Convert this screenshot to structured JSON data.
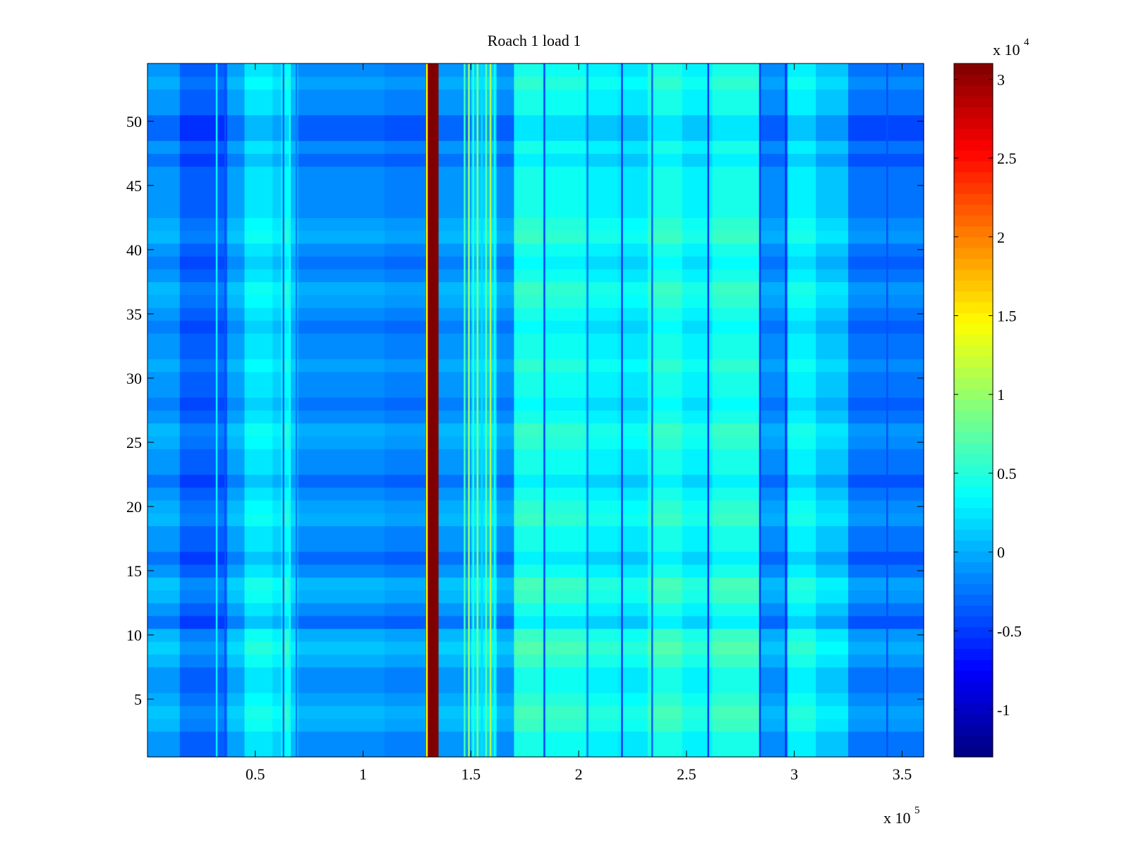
{
  "chart_data": {
    "type": "heatmap",
    "title": "Roach 1 load 1",
    "xlabel": "",
    "ylabel": "",
    "x_multiplier": "x 10",
    "x_multiplier_exp": "5",
    "xlim": [
      0,
      360000
    ],
    "ylim": [
      0.5,
      54.5
    ],
    "x_ticks": [
      0.5,
      1,
      1.5,
      2,
      2.5,
      3,
      3.5
    ],
    "x_tick_labels": [
      "0.5",
      "1",
      "1.5",
      "2",
      "2.5",
      "3",
      "3.5"
    ],
    "y_ticks": [
      5,
      10,
      15,
      20,
      25,
      30,
      35,
      40,
      45,
      50
    ],
    "y_tick_labels": [
      "5",
      "10",
      "15",
      "20",
      "25",
      "30",
      "35",
      "40",
      "45",
      "50"
    ],
    "rows": 54,
    "colormap": "jet",
    "colorbar": {
      "multiplier": "x 10",
      "multiplier_exp": "4",
      "limits": [
        -13000,
        31000
      ],
      "ticks": [
        -10000,
        -5000,
        0,
        5000,
        10000,
        15000,
        20000,
        25000,
        30000
      ],
      "tick_labels": [
        "-1",
        "-0.5",
        "0",
        "0.5",
        "1",
        "1.5",
        "2",
        "2.5",
        "3"
      ]
    },
    "column_profile": [
      {
        "x0": 0,
        "x1": 15000,
        "value": -1000
      },
      {
        "x0": 15000,
        "x1": 37000,
        "value": -3500
      },
      {
        "x0": 37000,
        "x1": 45000,
        "value": -500
      },
      {
        "x0": 45000,
        "x1": 58000,
        "value": 2500
      },
      {
        "x0": 58000,
        "x1": 62000,
        "value": 1500
      },
      {
        "x0": 62000,
        "x1": 66000,
        "value": 3500
      },
      {
        "x0": 66000,
        "x1": 70000,
        "value": 500
      },
      {
        "x0": 70000,
        "x1": 110000,
        "value": -1500
      },
      {
        "x0": 110000,
        "x1": 129000,
        "value": -2000
      },
      {
        "x0": 129000,
        "x1": 135000,
        "value": 31000
      },
      {
        "x0": 135000,
        "x1": 150000,
        "value": -1000
      },
      {
        "x0": 150000,
        "x1": 162000,
        "value": 1500
      },
      {
        "x0": 162000,
        "x1": 170000,
        "value": -1500
      },
      {
        "x0": 170000,
        "x1": 183000,
        "value": 4500
      },
      {
        "x0": 183000,
        "x1": 203000,
        "value": 4000
      },
      {
        "x0": 203000,
        "x1": 218000,
        "value": 3000
      },
      {
        "x0": 218000,
        "x1": 232000,
        "value": 2500
      },
      {
        "x0": 232000,
        "x1": 248000,
        "value": 4500
      },
      {
        "x0": 248000,
        "x1": 262000,
        "value": 3000
      },
      {
        "x0": 262000,
        "x1": 284000,
        "value": 4500
      },
      {
        "x0": 284000,
        "x1": 297000,
        "value": -1500
      },
      {
        "x0": 297000,
        "x1": 310000,
        "value": 3000
      },
      {
        "x0": 310000,
        "x1": 325000,
        "value": 1000
      },
      {
        "x0": 325000,
        "x1": 360000,
        "value": -2500
      }
    ],
    "vertical_lines": [
      {
        "x": 32000,
        "value": 3000
      },
      {
        "x": 36000,
        "value": -4000
      },
      {
        "x": 63000,
        "value": -3000
      },
      {
        "x": 66000,
        "value": 4000
      },
      {
        "x": 69000,
        "value": -2000
      },
      {
        "x": 129500,
        "value": 14000
      },
      {
        "x": 147000,
        "value": 6000
      },
      {
        "x": 149000,
        "value": 10000
      },
      {
        "x": 151000,
        "value": 5000
      },
      {
        "x": 153000,
        "value": 9000
      },
      {
        "x": 155000,
        "value": 2000
      },
      {
        "x": 157000,
        "value": 7000
      },
      {
        "x": 159000,
        "value": 11000
      },
      {
        "x": 161000,
        "value": 4000
      },
      {
        "x": 184000,
        "value": -4500
      },
      {
        "x": 204000,
        "value": -2500
      },
      {
        "x": 220000,
        "value": -5000
      },
      {
        "x": 234000,
        "value": -3000
      },
      {
        "x": 260000,
        "value": -5000
      },
      {
        "x": 284000,
        "value": -5000
      },
      {
        "x": 296000,
        "value": -5500
      },
      {
        "x": 343000,
        "value": -4000
      }
    ],
    "row_modulation": [
      {
        "row": 3,
        "delta": 1500
      },
      {
        "row": 4,
        "delta": 2000
      },
      {
        "row": 5,
        "delta": 1000
      },
      {
        "row": 8,
        "delta": 1500
      },
      {
        "row": 9,
        "delta": 2500
      },
      {
        "row": 10,
        "delta": 1500
      },
      {
        "row": 11,
        "delta": -1500
      },
      {
        "row": 13,
        "delta": 1500
      },
      {
        "row": 14,
        "delta": 2000
      },
      {
        "row": 16,
        "delta": -1500
      },
      {
        "row": 19,
        "delta": 1500
      },
      {
        "row": 20,
        "delta": 1000
      },
      {
        "row": 22,
        "delta": -1500
      },
      {
        "row": 25,
        "delta": 1000
      },
      {
        "row": 26,
        "delta": 1500
      },
      {
        "row": 28,
        "delta": -1000
      },
      {
        "row": 31,
        "delta": 1000
      },
      {
        "row": 34,
        "delta": -1000
      },
      {
        "row": 36,
        "delta": 1000
      },
      {
        "row": 37,
        "delta": 1500
      },
      {
        "row": 39,
        "delta": -1000
      },
      {
        "row": 41,
        "delta": 1500
      },
      {
        "row": 42,
        "delta": 1000
      },
      {
        "row": 47,
        "delta": -1500
      },
      {
        "row": 49,
        "delta": -2000
      },
      {
        "row": 50,
        "delta": -2000
      },
      {
        "row": 53,
        "delta": 1000
      }
    ]
  }
}
